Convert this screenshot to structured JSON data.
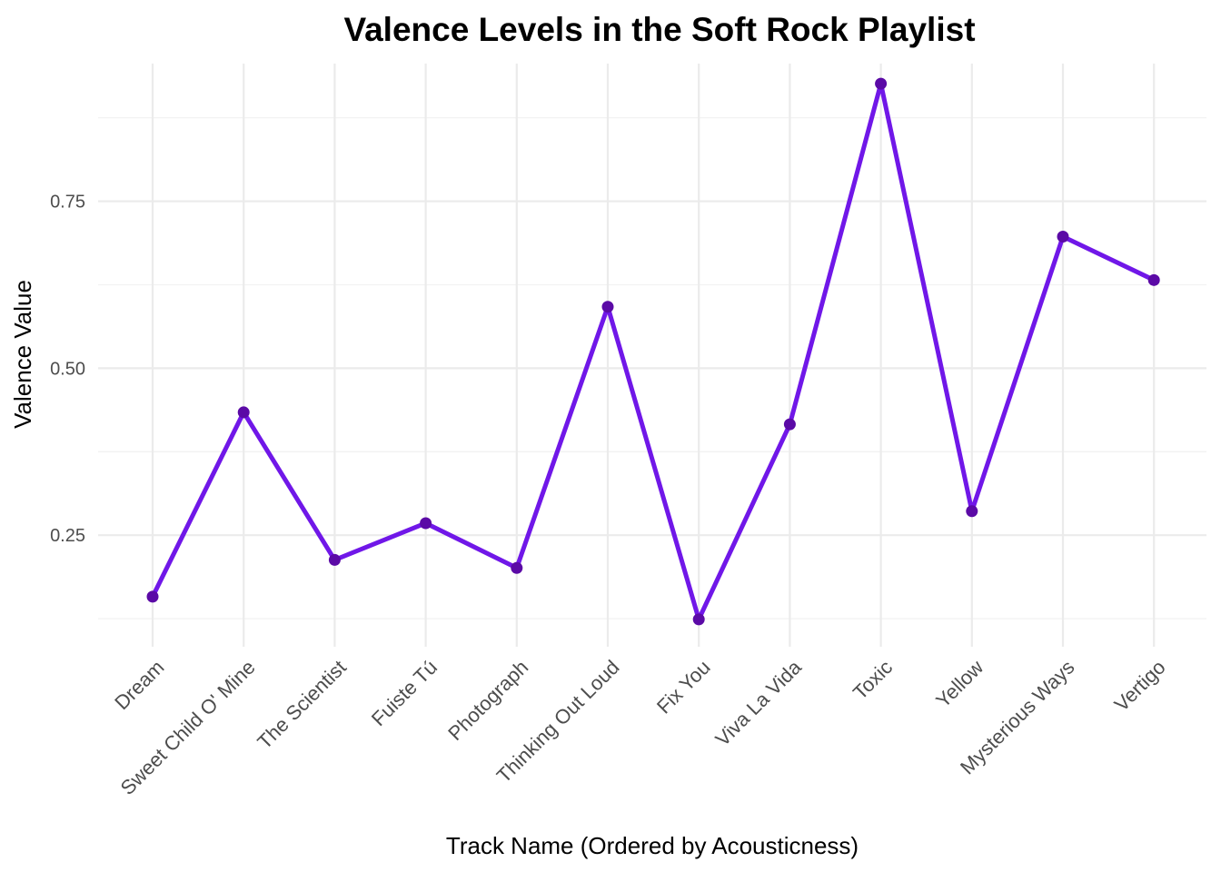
{
  "chart_data": {
    "type": "line",
    "title": "Valence Levels in the Soft Rock Playlist",
    "xlabel": "Track Name (Ordered by Acousticness)",
    "ylabel": "Valence Value",
    "categories": [
      "Dream",
      "Sweet Child O' Mine",
      "The Scientist",
      "Fuiste Tú",
      "Photograph",
      "Thinking Out Loud",
      "Fix You",
      "Viva La Vida",
      "Toxic",
      "Yellow",
      "Mysterious Ways",
      "Vertigo"
    ],
    "series": [
      {
        "values": [
          0.158,
          0.434,
          0.213,
          0.268,
          0.201,
          0.592,
          0.124,
          0.416,
          0.926,
          0.286,
          0.697,
          0.632
        ],
        "line_color": "#7017e8",
        "point_color": "#5b0aa6"
      }
    ],
    "yticks": [
      0.25,
      0.5,
      0.75
    ],
    "ytick_labels": [
      "0.25",
      "0.50",
      "0.75"
    ],
    "yminor": [
      0.125,
      0.375,
      0.625,
      0.875
    ],
    "ylim": [
      0.083,
      0.967
    ],
    "grid": true,
    "legend": "none"
  }
}
